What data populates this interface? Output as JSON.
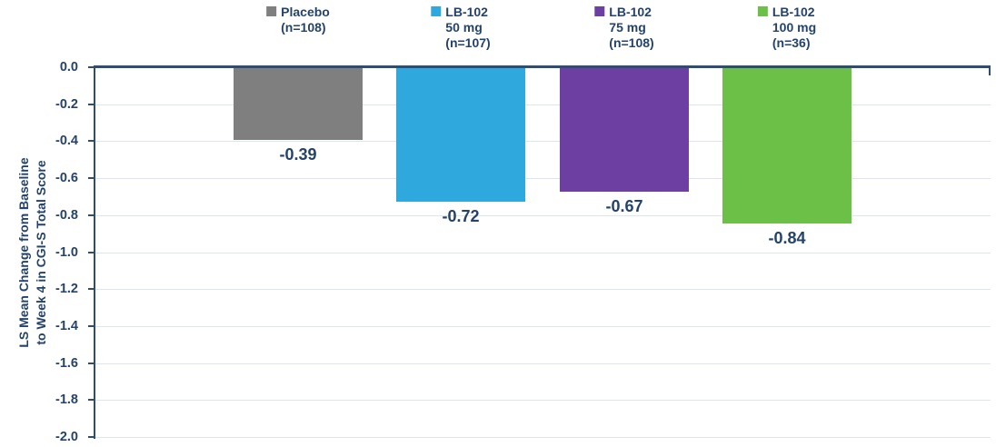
{
  "chart_data": {
    "type": "bar",
    "title": "",
    "xlabel": "",
    "ylabel": "LS Mean Change from Baseline to Week 4 in CGI-S Total Score",
    "ylabel_lines": [
      "LS Mean Change from Baseline",
      "to Week 4 in CGI-S Total Score"
    ],
    "ylim": [
      -2.0,
      0.0
    ],
    "ytick_labels": [
      "0.0",
      "-0.2",
      "-0.4",
      "-0.6",
      "-0.8",
      "-1.0",
      "-1.2",
      "-1.4",
      "-1.6",
      "-1.8",
      "-2.0"
    ],
    "grid": "horizontal",
    "legend_position": "top",
    "series": [
      {
        "name": "Placebo (n=108)",
        "legend_lines": [
          "Placebo",
          "(n=108)"
        ],
        "value": -0.39,
        "data_label": "-0.39",
        "color": "#7F7F7F"
      },
      {
        "name": "LB-102 50 mg (n=107)",
        "legend_lines": [
          "LB-102",
          "50 mg",
          "(n=107)"
        ],
        "value": -0.72,
        "data_label": "-0.72",
        "color": "#2FA8DD"
      },
      {
        "name": "LB-102 75 mg (n=108)",
        "legend_lines": [
          "LB-102",
          "75 mg",
          "(n=108)"
        ],
        "value": -0.67,
        "data_label": "-0.67",
        "color": "#6E3FA3"
      },
      {
        "name": "LB-102 100 mg (n=36)",
        "legend_lines": [
          "LB-102",
          "100 mg",
          "(n=36)"
        ],
        "value": -0.84,
        "data_label": "-0.84",
        "color": "#6CBF47"
      }
    ]
  },
  "style": {
    "text_color": "#24436B",
    "axis_color": "#2E4D70",
    "gridline_color": "#DDE5ED",
    "background": "#FFFFFF"
  }
}
